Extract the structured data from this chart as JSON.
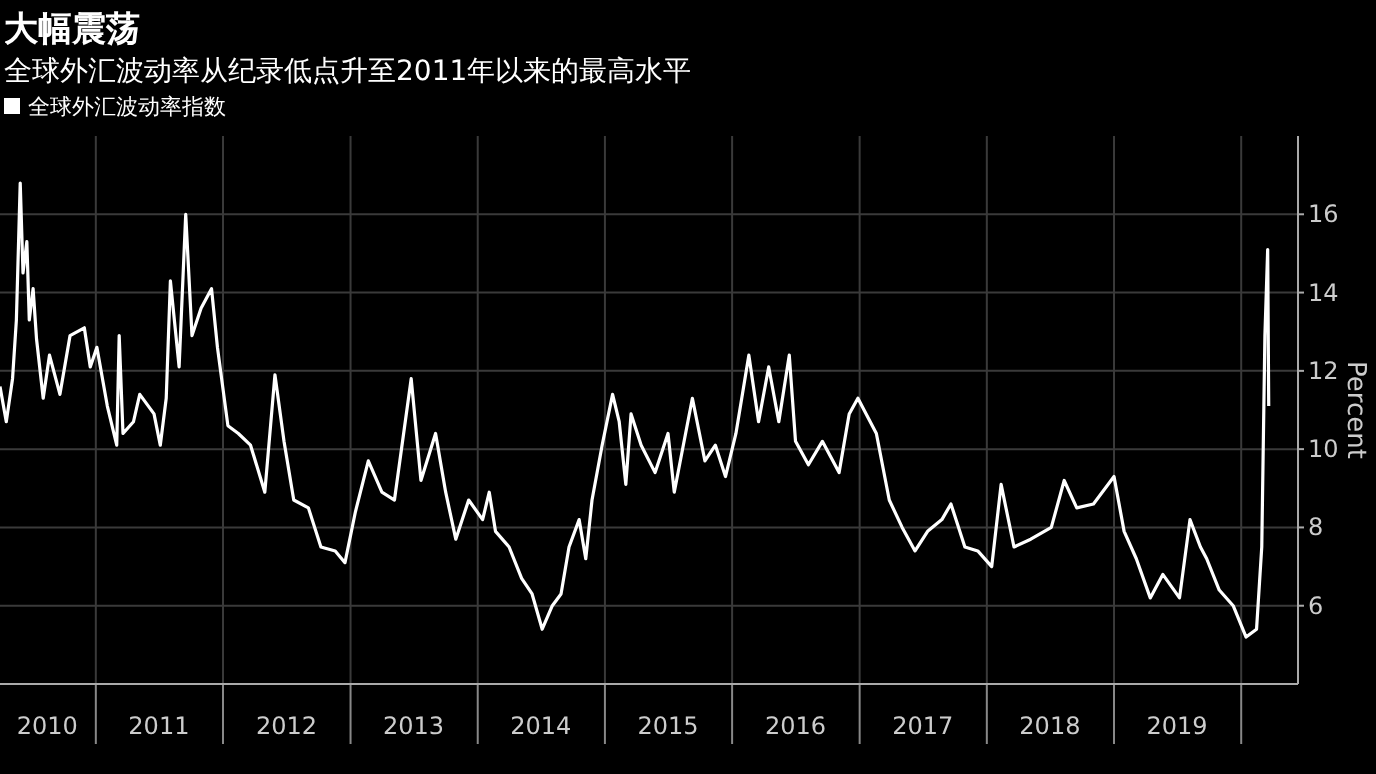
{
  "chart_data": {
    "type": "line",
    "title": "大幅震荡",
    "subtitle": "全球外汇波动率从纪录低点升至2011年以来的最高水平",
    "ylabel": "Percent",
    "legend": "top left",
    "grid": true,
    "xlim": [
      "2010-04-01",
      "2020-06-12"
    ],
    "ylim": [
      4,
      18
    ],
    "xticks": [
      {
        "value": "2010-08-15",
        "label": "2010"
      },
      {
        "value": "2011-01-01",
        "label": null
      },
      {
        "value": "2011-07-01",
        "label": "2011"
      },
      {
        "value": "2012-01-01",
        "label": null
      },
      {
        "value": "2012-07-01",
        "label": "2012"
      },
      {
        "value": "2013-01-01",
        "label": null
      },
      {
        "value": "2013-07-01",
        "label": "2013"
      },
      {
        "value": "2014-01-01",
        "label": null
      },
      {
        "value": "2014-07-01",
        "label": "2014"
      },
      {
        "value": "2015-01-01",
        "label": null
      },
      {
        "value": "2015-07-01",
        "label": "2015"
      },
      {
        "value": "2016-01-01",
        "label": null
      },
      {
        "value": "2016-07-01",
        "label": "2016"
      },
      {
        "value": "2017-01-01",
        "label": null
      },
      {
        "value": "2017-07-01",
        "label": "2017"
      },
      {
        "value": "2018-01-01",
        "label": null
      },
      {
        "value": "2018-07-01",
        "label": "2018"
      },
      {
        "value": "2019-01-01",
        "label": null
      },
      {
        "value": "2019-07-01",
        "label": "2019"
      },
      {
        "value": "2020-01-01",
        "label": null
      }
    ],
    "yticks": [
      6,
      8,
      10,
      12,
      14,
      16
    ],
    "series": [
      {
        "name": "全球外汇波动率指数",
        "color": "#ffffff",
        "x": [
          "2010-04-01",
          "2010-04-19",
          "2010-05-07",
          "2010-05-18",
          "2010-05-29",
          "2010-06-06",
          "2010-06-17",
          "2010-06-24",
          "2010-07-05",
          "2010-07-15",
          "2010-08-03",
          "2010-08-21",
          "2010-09-20",
          "2010-10-19",
          "2010-11-29",
          "2010-12-16",
          "2011-01-04",
          "2011-02-03",
          "2011-03-02",
          "2011-03-09",
          "2011-03-20",
          "2011-04-19",
          "2011-05-07",
          "2011-06-17",
          "2011-07-05",
          "2011-07-22",
          "2011-08-03",
          "2011-08-28",
          "2011-09-16",
          "2011-10-04",
          "2011-10-30",
          "2011-11-29",
          "2011-12-16",
          "2012-01-15",
          "2012-02-14",
          "2012-03-20",
          "2012-04-30",
          "2012-05-29",
          "2012-06-24",
          "2012-07-22",
          "2012-09-02",
          "2012-10-08",
          "2012-11-18",
          "2012-12-16",
          "2013-01-15",
          "2013-02-21",
          "2013-04-01",
          "2013-05-07",
          "2013-06-24",
          "2013-07-22",
          "2013-09-02",
          "2013-10-01",
          "2013-10-30",
          "2013-12-06",
          "2014-01-15",
          "2014-02-03",
          "2014-02-21",
          "2014-04-01",
          "2014-05-07",
          "2014-06-06",
          "2014-07-05",
          "2014-08-03",
          "2014-08-28",
          "2014-09-20",
          "2014-10-19",
          "2014-11-07",
          "2014-11-25",
          "2014-12-24",
          "2015-01-23",
          "2015-02-11",
          "2015-03-02",
          "2015-03-17",
          "2015-04-15",
          "2015-05-25",
          "2015-07-01",
          "2015-07-19",
          "2015-09-09",
          "2015-10-15",
          "2015-11-14",
          "2015-12-13",
          "2016-01-12",
          "2016-02-18",
          "2016-03-17",
          "2016-04-15",
          "2016-05-14",
          "2016-06-13",
          "2016-07-01",
          "2016-08-07",
          "2016-09-16",
          "2016-11-03",
          "2016-12-02",
          "2016-12-27",
          "2017-02-18",
          "2017-03-27",
          "2017-05-03",
          "2017-06-09",
          "2017-07-15",
          "2017-08-25",
          "2017-09-20",
          "2017-10-30",
          "2017-12-06",
          "2018-01-15",
          "2018-02-11",
          "2018-03-20",
          "2018-05-07",
          "2018-07-05",
          "2018-08-11",
          "2018-09-16",
          "2018-11-03",
          "2019-01-01",
          "2019-01-30",
          "2019-03-06",
          "2019-04-15",
          "2019-05-21",
          "2019-07-08",
          "2019-08-07",
          "2019-09-06",
          "2019-09-24",
          "2019-10-30",
          "2019-12-09",
          "2020-01-15",
          "2020-02-14",
          "2020-02-29",
          "2020-03-06",
          "2020-03-09",
          "2020-03-17",
          "2020-03-20"
        ],
        "values": [
          11.6,
          10.7,
          11.8,
          13.3,
          16.8,
          14.5,
          15.3,
          13.3,
          14.1,
          12.8,
          11.3,
          12.4,
          11.4,
          12.9,
          13.1,
          12.1,
          12.6,
          11.1,
          10.1,
          12.9,
          10.4,
          10.7,
          11.4,
          10.9,
          10.1,
          11.3,
          14.3,
          12.1,
          16.0,
          12.9,
          13.6,
          14.1,
          12.6,
          10.6,
          10.4,
          10.1,
          8.9,
          11.9,
          10.2,
          8.7,
          8.5,
          7.5,
          7.4,
          7.1,
          8.4,
          9.7,
          8.9,
          8.7,
          11.8,
          9.2,
          10.4,
          8.9,
          7.7,
          8.7,
          8.2,
          8.9,
          7.9,
          7.5,
          6.7,
          6.3,
          5.4,
          6.0,
          6.3,
          7.5,
          8.2,
          7.2,
          8.7,
          10.1,
          11.4,
          10.7,
          9.1,
          10.9,
          10.1,
          9.4,
          10.4,
          8.9,
          11.3,
          9.7,
          10.1,
          9.3,
          10.4,
          12.4,
          10.7,
          12.1,
          10.7,
          12.4,
          10.2,
          9.6,
          10.2,
          9.4,
          10.9,
          11.3,
          10.4,
          8.7,
          8.0,
          7.4,
          7.9,
          8.2,
          8.6,
          7.5,
          7.4,
          7.0,
          9.1,
          7.5,
          7.7,
          8.0,
          9.2,
          8.5,
          8.6,
          9.3,
          7.9,
          7.2,
          6.2,
          6.8,
          6.2,
          8.2,
          7.5,
          7.2,
          6.4,
          6.0,
          5.2,
          5.4,
          7.5,
          11.1,
          12.9,
          15.1,
          11.1
        ]
      }
    ]
  }
}
